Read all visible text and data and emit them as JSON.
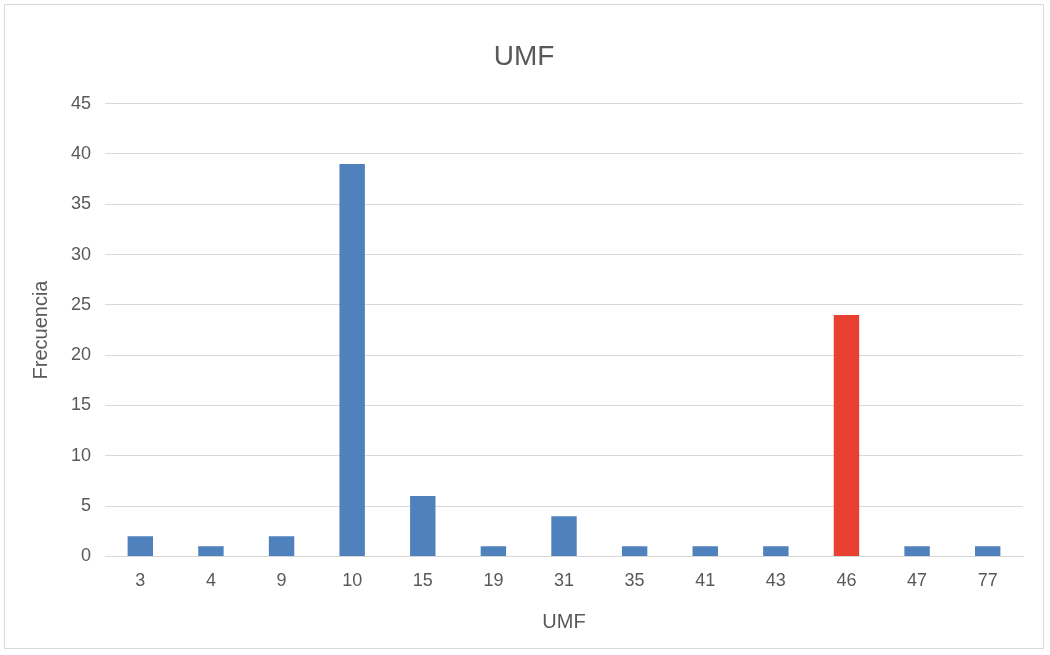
{
  "chart_data": {
    "type": "bar",
    "title": "UMF",
    "xlabel": "UMF",
    "ylabel": "Frecuencia",
    "categories": [
      "3",
      "4",
      "9",
      "10",
      "15",
      "19",
      "31",
      "35",
      "41",
      "43",
      "46",
      "47",
      "77"
    ],
    "values": [
      2,
      1,
      2,
      39,
      6,
      1,
      4,
      1,
      1,
      1,
      24,
      1,
      1
    ],
    "colors": [
      "#4f81bd",
      "#4f81bd",
      "#4f81bd",
      "#4f81bd",
      "#4f81bd",
      "#4f81bd",
      "#4f81bd",
      "#4f81bd",
      "#4f81bd",
      "#4f81bd",
      "#e84132",
      "#4f81bd",
      "#4f81bd"
    ],
    "ylim": [
      0,
      45
    ],
    "yticks": [
      0,
      5,
      10,
      15,
      20,
      25,
      30,
      35,
      40,
      45
    ],
    "grid": "y",
    "legend": false
  }
}
